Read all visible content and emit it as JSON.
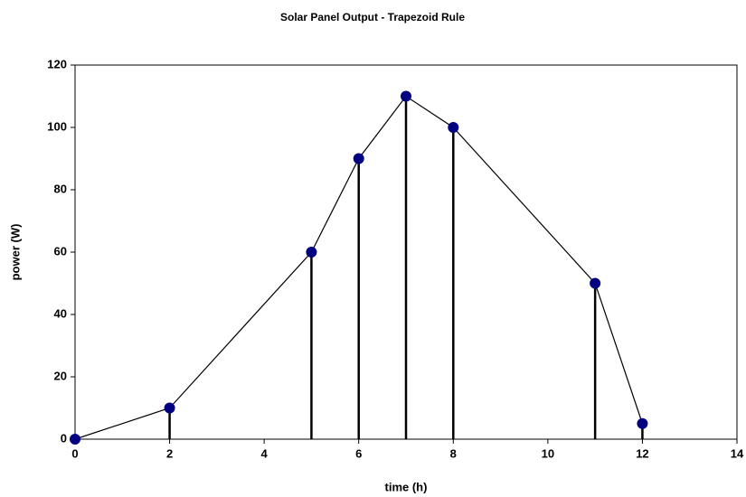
{
  "chart_data": {
    "type": "scatter",
    "title": "Solar Panel Output - Trapezoid Rule",
    "xlabel": "time (h)",
    "ylabel": "power (W)",
    "x": [
      0,
      2,
      5,
      6,
      7,
      8,
      11,
      12
    ],
    "values": [
      0,
      10,
      60,
      90,
      110,
      100,
      50,
      5
    ],
    "color": "#000080",
    "line_color": "#000000",
    "connect": true,
    "drop_lines": true,
    "xlim": [
      0,
      14
    ],
    "xticks": [
      0,
      2,
      4,
      6,
      8,
      10,
      12,
      14
    ],
    "ylim": [
      0,
      120
    ],
    "yticks": [
      0,
      20,
      40,
      60,
      80,
      100,
      120
    ],
    "grid": false
  }
}
